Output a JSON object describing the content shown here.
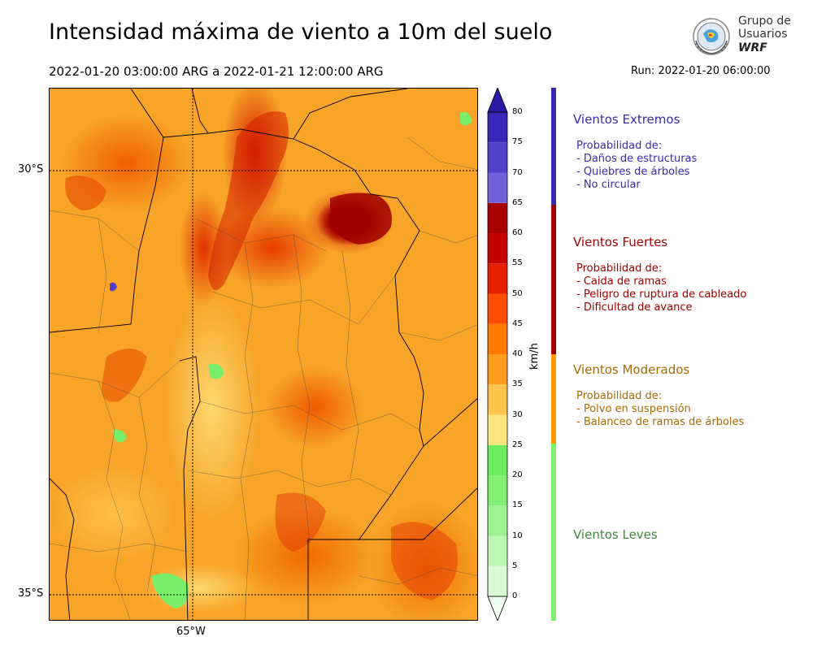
{
  "header": {
    "title": "Intensidad máxima de viento a 10m del suelo",
    "period": "2022-01-20 03:00:00 ARG  a  2022-01-21 12:00:00 ARG",
    "run": "Run: 2022-01-20 06:00:00"
  },
  "logo": {
    "line1": "Grupo de",
    "line2": "Usuarios",
    "line3": "WRF"
  },
  "map": {
    "lat_labels": [
      "30°S",
      "35°S"
    ],
    "lon_labels": [
      "65°W"
    ]
  },
  "colorbar": {
    "unit": "km/h",
    "ticks": [
      "0",
      "5",
      "10",
      "15",
      "20",
      "25",
      "30",
      "35",
      "40",
      "45",
      "50",
      "55",
      "60",
      "65",
      "70",
      "75",
      "80"
    ],
    "colors": [
      "#f0fff0",
      "#d8fad2",
      "#bdf5b3",
      "#9ef292",
      "#82ef74",
      "#6fec5f",
      "#ffe680",
      "#ffc44d",
      "#ff9d1f",
      "#ff7a00",
      "#ff4d00",
      "#e62000",
      "#c40000",
      "#a60000",
      "#7060d8",
      "#5040c8",
      "#3a28b8",
      "#2a1aa6"
    ]
  },
  "categories": [
    {
      "title": "Vientos Extremos",
      "color": "#3a2ab0",
      "text_color": "#3a2ab0",
      "prob_title": "Probabilidad de:",
      "items": [
        "- Daños de estructuras",
        "- Quiebres de árboles",
        "- No circular"
      ]
    },
    {
      "title": "Vientos Fuertes",
      "color": "#a00000",
      "text_color": "#a00000",
      "prob_title": "Probabilidad de:",
      "items": [
        "- Caida de ramas",
        "- Peligro de ruptura de cableado",
        "- Dificultad de avance"
      ]
    },
    {
      "title": "Vientos Moderados",
      "color": "#ff9a00",
      "text_color": "#a86a00",
      "prob_title": "Probabilidad de:",
      "items": [
        "- Polvo en suspensión",
        "- Balanceo de ramas de árboles"
      ]
    },
    {
      "title": "Vientos Leves",
      "color": "#7ef070",
      "text_color": "#3f8a3a",
      "prob_title": "",
      "items": []
    }
  ]
}
